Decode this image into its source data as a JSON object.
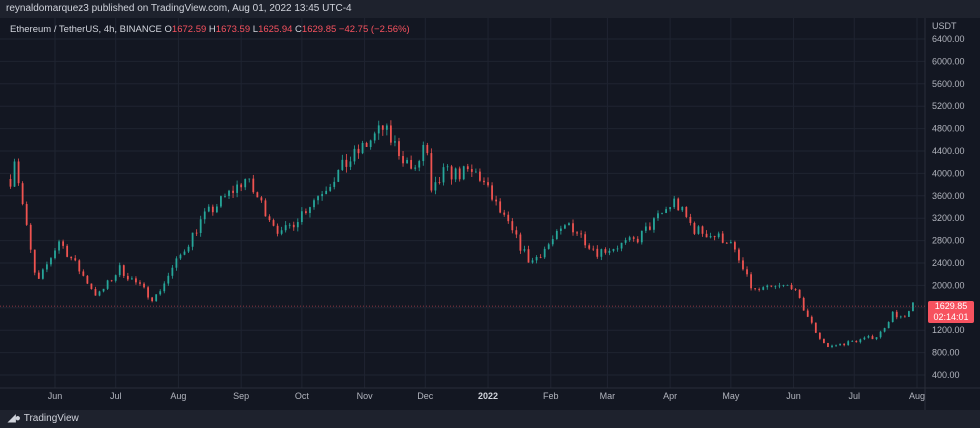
{
  "header": {
    "published_text": "reynaldomarquez3 published on TradingView.com, Aug 01, 2022 13:45 UTC-4"
  },
  "legend": {
    "symbol": "Ethereum / TetherUS, 4h, BINANCE",
    "o_label": "O",
    "o_value": "1672.59",
    "h_label": "H",
    "h_value": "1673.59",
    "l_label": "L",
    "l_value": "1625.94",
    "c_label": "C",
    "c_value": "1629.85",
    "change": "−42.75 (−2.56%)"
  },
  "price_tag": {
    "price": "1629.85",
    "countdown": "02:14:01"
  },
  "footer": {
    "brand": "TradingView",
    "logo_icon": "tradingview-logo-icon"
  },
  "colors": {
    "up": "#26a69a",
    "down": "#ef5350",
    "background": "#131722",
    "grid": "#1f2431",
    "tag": "#f7525f"
  },
  "chart_data": {
    "type": "line",
    "title": "Ethereum / TetherUS, 4h, BINANCE",
    "ylabel": "USDT",
    "ylim": [
      0,
      6800
    ],
    "yticks": [
      "6400.00",
      "6000.00",
      "5600.00",
      "5200.00",
      "4800.00",
      "4400.00",
      "4000.00",
      "3600.00",
      "3200.00",
      "2800.00",
      "2400.00",
      "2000.00",
      "1600.00",
      "1200.00",
      "800.00",
      "400.00"
    ],
    "xticks": [
      "Jun",
      "Jul",
      "Aug",
      "Sep",
      "Oct",
      "Nov",
      "Dec",
      "2022",
      "Feb",
      "Mar",
      "Apr",
      "May",
      "Jun",
      "Jul",
      "Aug"
    ],
    "x": [
      "2021-05-10",
      "2021-05-12",
      "2021-05-19",
      "2021-05-23",
      "2021-06-03",
      "2021-06-22",
      "2021-07-03",
      "2021-07-20",
      "2021-08-13",
      "2021-09-03",
      "2021-09-21",
      "2021-10-01",
      "2021-10-21",
      "2021-11-10",
      "2021-11-26",
      "2021-12-01",
      "2021-12-04",
      "2021-12-10",
      "2021-12-27",
      "2022-01-07",
      "2022-01-22",
      "2022-02-10",
      "2022-02-24",
      "2022-03-15",
      "2022-04-03",
      "2022-04-13",
      "2022-04-30",
      "2022-05-12",
      "2022-05-31",
      "2022-06-13",
      "2022-06-18",
      "2022-07-13",
      "2022-07-20",
      "2022-07-26",
      "2022-07-31"
    ],
    "series": [
      {
        "values": [
          3900,
          4300,
          2800,
          2000,
          2800,
          1800,
          2300,
          1750,
          3200,
          3900,
          2900,
          3300,
          4100,
          4800,
          4000,
          4600,
          3600,
          4000,
          4000,
          3300,
          2400,
          3100,
          2600,
          2800,
          3500,
          3000,
          2800,
          1900,
          2000,
          1100,
          900,
          1100,
          1500,
          1400,
          1700
        ]
      }
    ],
    "last_price": 1629.85
  }
}
